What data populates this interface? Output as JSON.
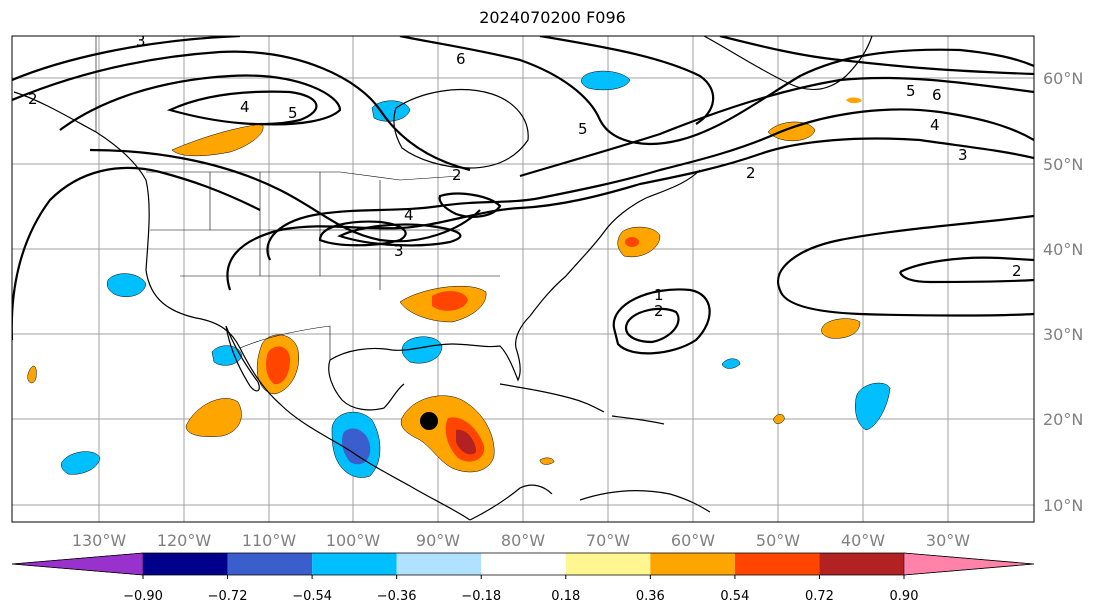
{
  "title": "2024070200 F096",
  "lon_labels": [
    "130°W",
    "120°W",
    "110°W",
    "100°W",
    "90°W",
    "80°W",
    "70°W",
    "60°W",
    "50°W",
    "40°W",
    "30°W"
  ],
  "lat_labels": [
    "60°N",
    "50°N",
    "40°N",
    "30°N",
    "20°N",
    "10°N"
  ],
  "colorbar": {
    "colors": [
      "#9932cc",
      "#00008b",
      "#3a5fcd",
      "#00bfff",
      "#b0e2ff",
      "#ffffff",
      "#fff68f",
      "#ffa500",
      "#ff4500",
      "#b22222",
      "#ff82ab"
    ],
    "tick_labels": [
      "−0.90",
      "−0.72",
      "−0.54",
      "−0.36",
      "−0.18",
      "0.18",
      "0.36",
      "0.54",
      "0.72",
      "0.90"
    ]
  },
  "contour_labels": [
    "1",
    "2",
    "2",
    "3",
    "4",
    "5",
    "6",
    "2",
    "3",
    "4",
    "5",
    "6",
    "2",
    "3",
    "4",
    "5",
    "2"
  ],
  "marker": {
    "name": "storm-center",
    "color": "#000000"
  }
}
